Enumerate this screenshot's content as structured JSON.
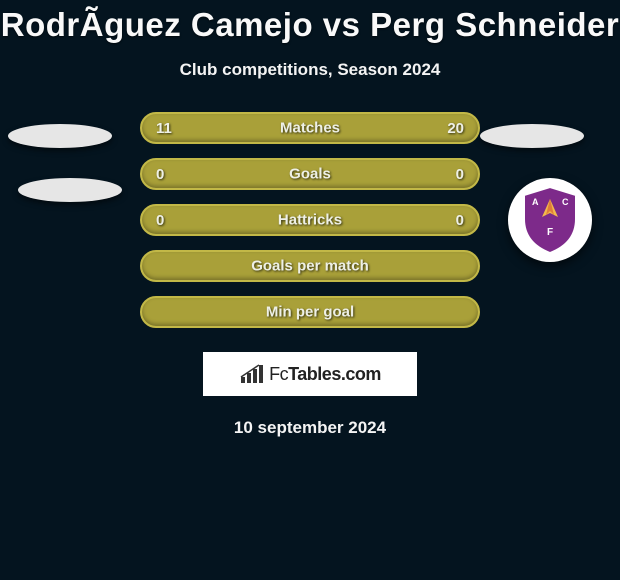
{
  "title": "RodrÃ­guez Camejo vs Perg Schneider",
  "subtitle": "Club competitions, Season 2024",
  "rows": [
    {
      "label": "Matches",
      "left": "11",
      "right": "20",
      "fill": "#a9a039",
      "border": "#c2b847"
    },
    {
      "label": "Goals",
      "left": "0",
      "right": "0",
      "fill": "#a9a039",
      "border": "#c2b847"
    },
    {
      "label": "Hattricks",
      "left": "0",
      "right": "0",
      "fill": "#a9a039",
      "border": "#c2b847"
    },
    {
      "label": "Goals per match",
      "left": "",
      "right": "",
      "fill": "#a9a039",
      "border": "#c2b847"
    },
    {
      "label": "Min per goal",
      "left": "",
      "right": "",
      "fill": "#a9a039",
      "border": "#c2b847"
    }
  ],
  "logo": {
    "text_fc": "Fc",
    "text_rest": "Tables.com"
  },
  "date": "10 september 2024",
  "badge": {
    "shield_fill": "#7d2a8a",
    "shield_border": "#ffffff",
    "banner_fill": "#b79647",
    "letter_left": "A",
    "letter_right": "C",
    "letter_bottom": "F"
  }
}
